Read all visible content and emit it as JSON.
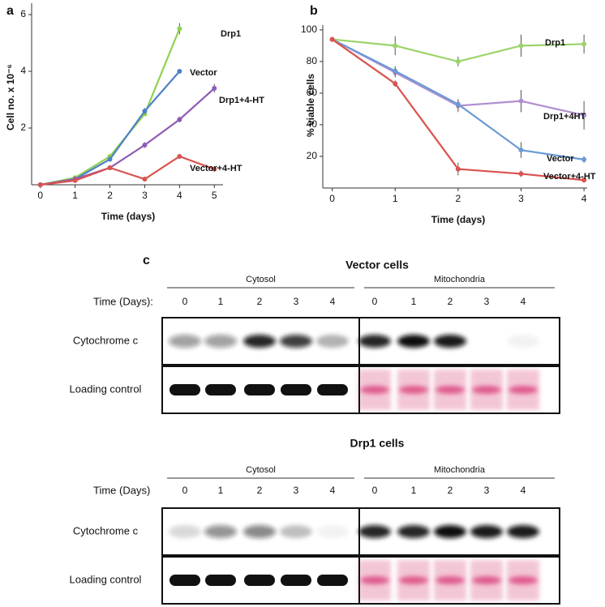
{
  "chart_data": [
    {
      "type": "line",
      "label": "a",
      "xlabel": "Time (days)",
      "ylabel": "Cell no. x 10⁻⁶",
      "x": [
        0,
        1,
        2,
        3,
        4,
        5
      ],
      "xlim": [
        -0.25,
        5.25
      ],
      "xticks": [
        0,
        1,
        2,
        3,
        4,
        5
      ],
      "ylim": [
        0,
        6.4
      ],
      "yticks": [
        2,
        4,
        6
      ],
      "series": [
        {
          "name": "Drp1",
          "color": "#8fd14f",
          "values": [
            0,
            0.25,
            1.0,
            2.5,
            5.5,
            null
          ],
          "errors": [
            0,
            0,
            0,
            0,
            0.2,
            null
          ]
        },
        {
          "name": "Vector",
          "color": "#4f81c7",
          "values": [
            0,
            0.2,
            0.9,
            2.6,
            4.0,
            null
          ],
          "errors": [
            0,
            0,
            0,
            0.1,
            0.05,
            null
          ]
        },
        {
          "name": "Drp1+4-HT",
          "color": "#8e5bb5",
          "values": [
            0,
            0.2,
            0.6,
            1.4,
            2.3,
            3.4
          ],
          "errors": [
            0,
            0,
            0,
            0.1,
            0.1,
            0.15
          ]
        },
        {
          "name": "Vector+4-HT",
          "color": "#d9534f",
          "values": [
            0,
            0.15,
            0.6,
            0.2,
            1.0,
            0.55
          ],
          "errors": [
            0,
            0,
            0,
            0,
            0.05,
            0.05
          ]
        }
      ]
    },
    {
      "type": "line",
      "label": "b",
      "xlabel": "Time (days)",
      "ylabel": "% viable cells",
      "x": [
        0,
        1,
        2,
        3,
        4
      ],
      "xlim": [
        -0.15,
        4.05
      ],
      "xticks": [
        0,
        1,
        2,
        3,
        4
      ],
      "ylim": [
        0,
        103
      ],
      "yticks": [
        20,
        40,
        60,
        80,
        100
      ],
      "series": [
        {
          "name": "Drp1",
          "color": "#9ad46a",
          "values": [
            94,
            90,
            80,
            90,
            91
          ],
          "errors": [
            0,
            6,
            3,
            7,
            6
          ]
        },
        {
          "name": "Drp1+4HT",
          "color": "#b08fd0",
          "values": [
            94,
            73,
            52,
            55,
            46
          ],
          "errors": [
            0,
            3,
            4,
            7,
            9
          ]
        },
        {
          "name": "Vector",
          "color": "#6b9ad6",
          "values": [
            94,
            74,
            53,
            24,
            18
          ],
          "errors": [
            0,
            3,
            3,
            5,
            2
          ]
        },
        {
          "name": "Vector+4-HT",
          "color": "#d9534f",
          "values": [
            94,
            66,
            12,
            9,
            5
          ],
          "errors": [
            0,
            2,
            4,
            2,
            1
          ]
        }
      ]
    }
  ],
  "blots": {
    "label": "c",
    "panels": [
      {
        "title": "Vector cells",
        "groups": [
          "Cytosol",
          "Mitochondria"
        ],
        "time_label": "Time (Days):",
        "times": [
          "0",
          "1",
          "2",
          "3",
          "4"
        ],
        "rows": [
          "Cytochrome c",
          "Loading control"
        ]
      },
      {
        "title": "Drp1 cells",
        "groups": [
          "Cytosol",
          "Mitochondria"
        ],
        "time_label": "Time (Days)",
        "times": [
          "0",
          "1",
          "2",
          "3",
          "4"
        ],
        "rows": [
          "Cytochrome c",
          "Loading control"
        ]
      }
    ]
  }
}
